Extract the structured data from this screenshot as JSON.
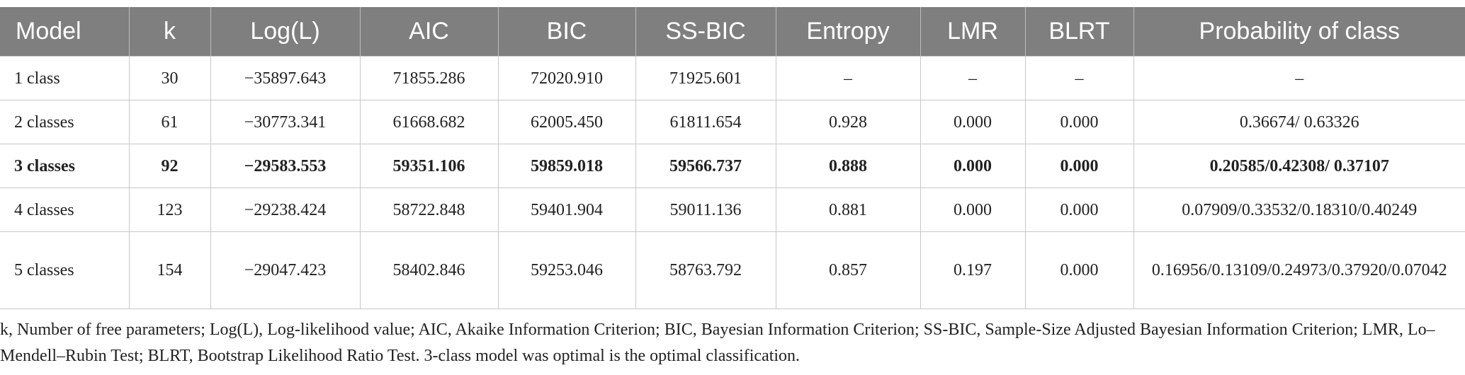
{
  "table": {
    "header": [
      "Model",
      "k",
      "Log(L)",
      "AIC",
      "BIC",
      "SS-BIC",
      "Entropy",
      "LMR",
      "BLRT",
      "Probability of class"
    ],
    "rows": [
      [
        "1 class",
        "30",
        "−35897.643",
        "71855.286",
        "72020.910",
        "71925.601",
        "–",
        "–",
        "–",
        "–"
      ],
      [
        "2 classes",
        "61",
        "−30773.341",
        "61668.682",
        "62005.450",
        "61811.654",
        "0.928",
        "0.000",
        "0.000",
        "0.36674/ 0.63326"
      ],
      [
        "3 classes",
        "92",
        "−29583.553",
        "59351.106",
        "59859.018",
        "59566.737",
        "0.888",
        "0.000",
        "0.000",
        "0.20585/0.42308/ 0.37107"
      ],
      [
        "4 classes",
        "123",
        "−29238.424",
        "58722.848",
        "59401.904",
        "59011.136",
        "0.881",
        "0.000",
        "0.000",
        "0.07909/0.33532/0.18310/0.40249"
      ],
      [
        "5 classes",
        "154",
        "−29047.423",
        "58402.846",
        "59253.046",
        "58763.792",
        "0.857",
        "0.197",
        "0.000",
        "0.16956/0.13109/0.24973/0.37920/0.07042"
      ]
    ]
  },
  "footnote": "k, Number of free parameters; Log(L), Log-likelihood value; AIC, Akaike Information Criterion; BIC, Bayesian Information Criterion; SS-BIC, Sample-Size Adjusted Bayesian Information Criterion; LMR, Lo–Mendell–Rubin Test; BLRT, Bootstrap Likelihood Ratio Test. 3-class model was optimal is the optimal classification."
}
